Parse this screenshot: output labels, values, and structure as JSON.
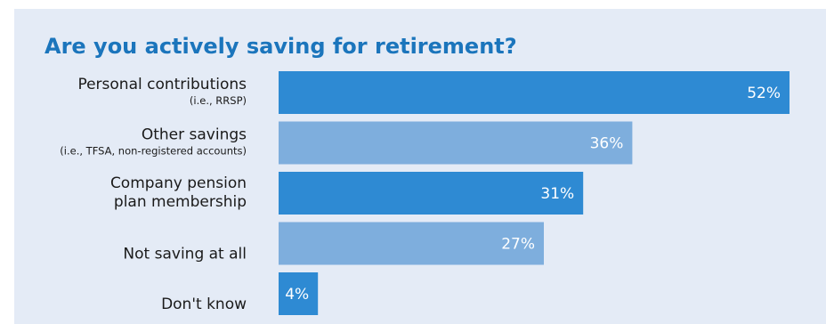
{
  "chart_data": {
    "type": "bar",
    "orientation": "horizontal",
    "title": "Are you actively saving for retirement?",
    "categories": [
      {
        "lines": [
          "Personal contributions"
        ],
        "sub": "(i.e., RRSP)"
      },
      {
        "lines": [
          "Other savings"
        ],
        "sub": "(i.e., TFSA, non-registered accounts)"
      },
      {
        "lines": [
          "Company pension",
          "plan membership"
        ],
        "sub": ""
      },
      {
        "lines": [
          "Not saving at all"
        ],
        "sub": ""
      },
      {
        "lines": [
          "Don't know"
        ],
        "sub": ""
      }
    ],
    "values": [
      52,
      36,
      31,
      27,
      4
    ],
    "value_labels": [
      "52%",
      "36%",
      "31%",
      "27%",
      "4%"
    ],
    "colors": [
      "#2e8ad3",
      "#7eaedd",
      "#2e8ad3",
      "#7eaedd",
      "#2e8ad3"
    ],
    "xlim": [
      0,
      52
    ],
    "grid": false,
    "legend": "none"
  }
}
